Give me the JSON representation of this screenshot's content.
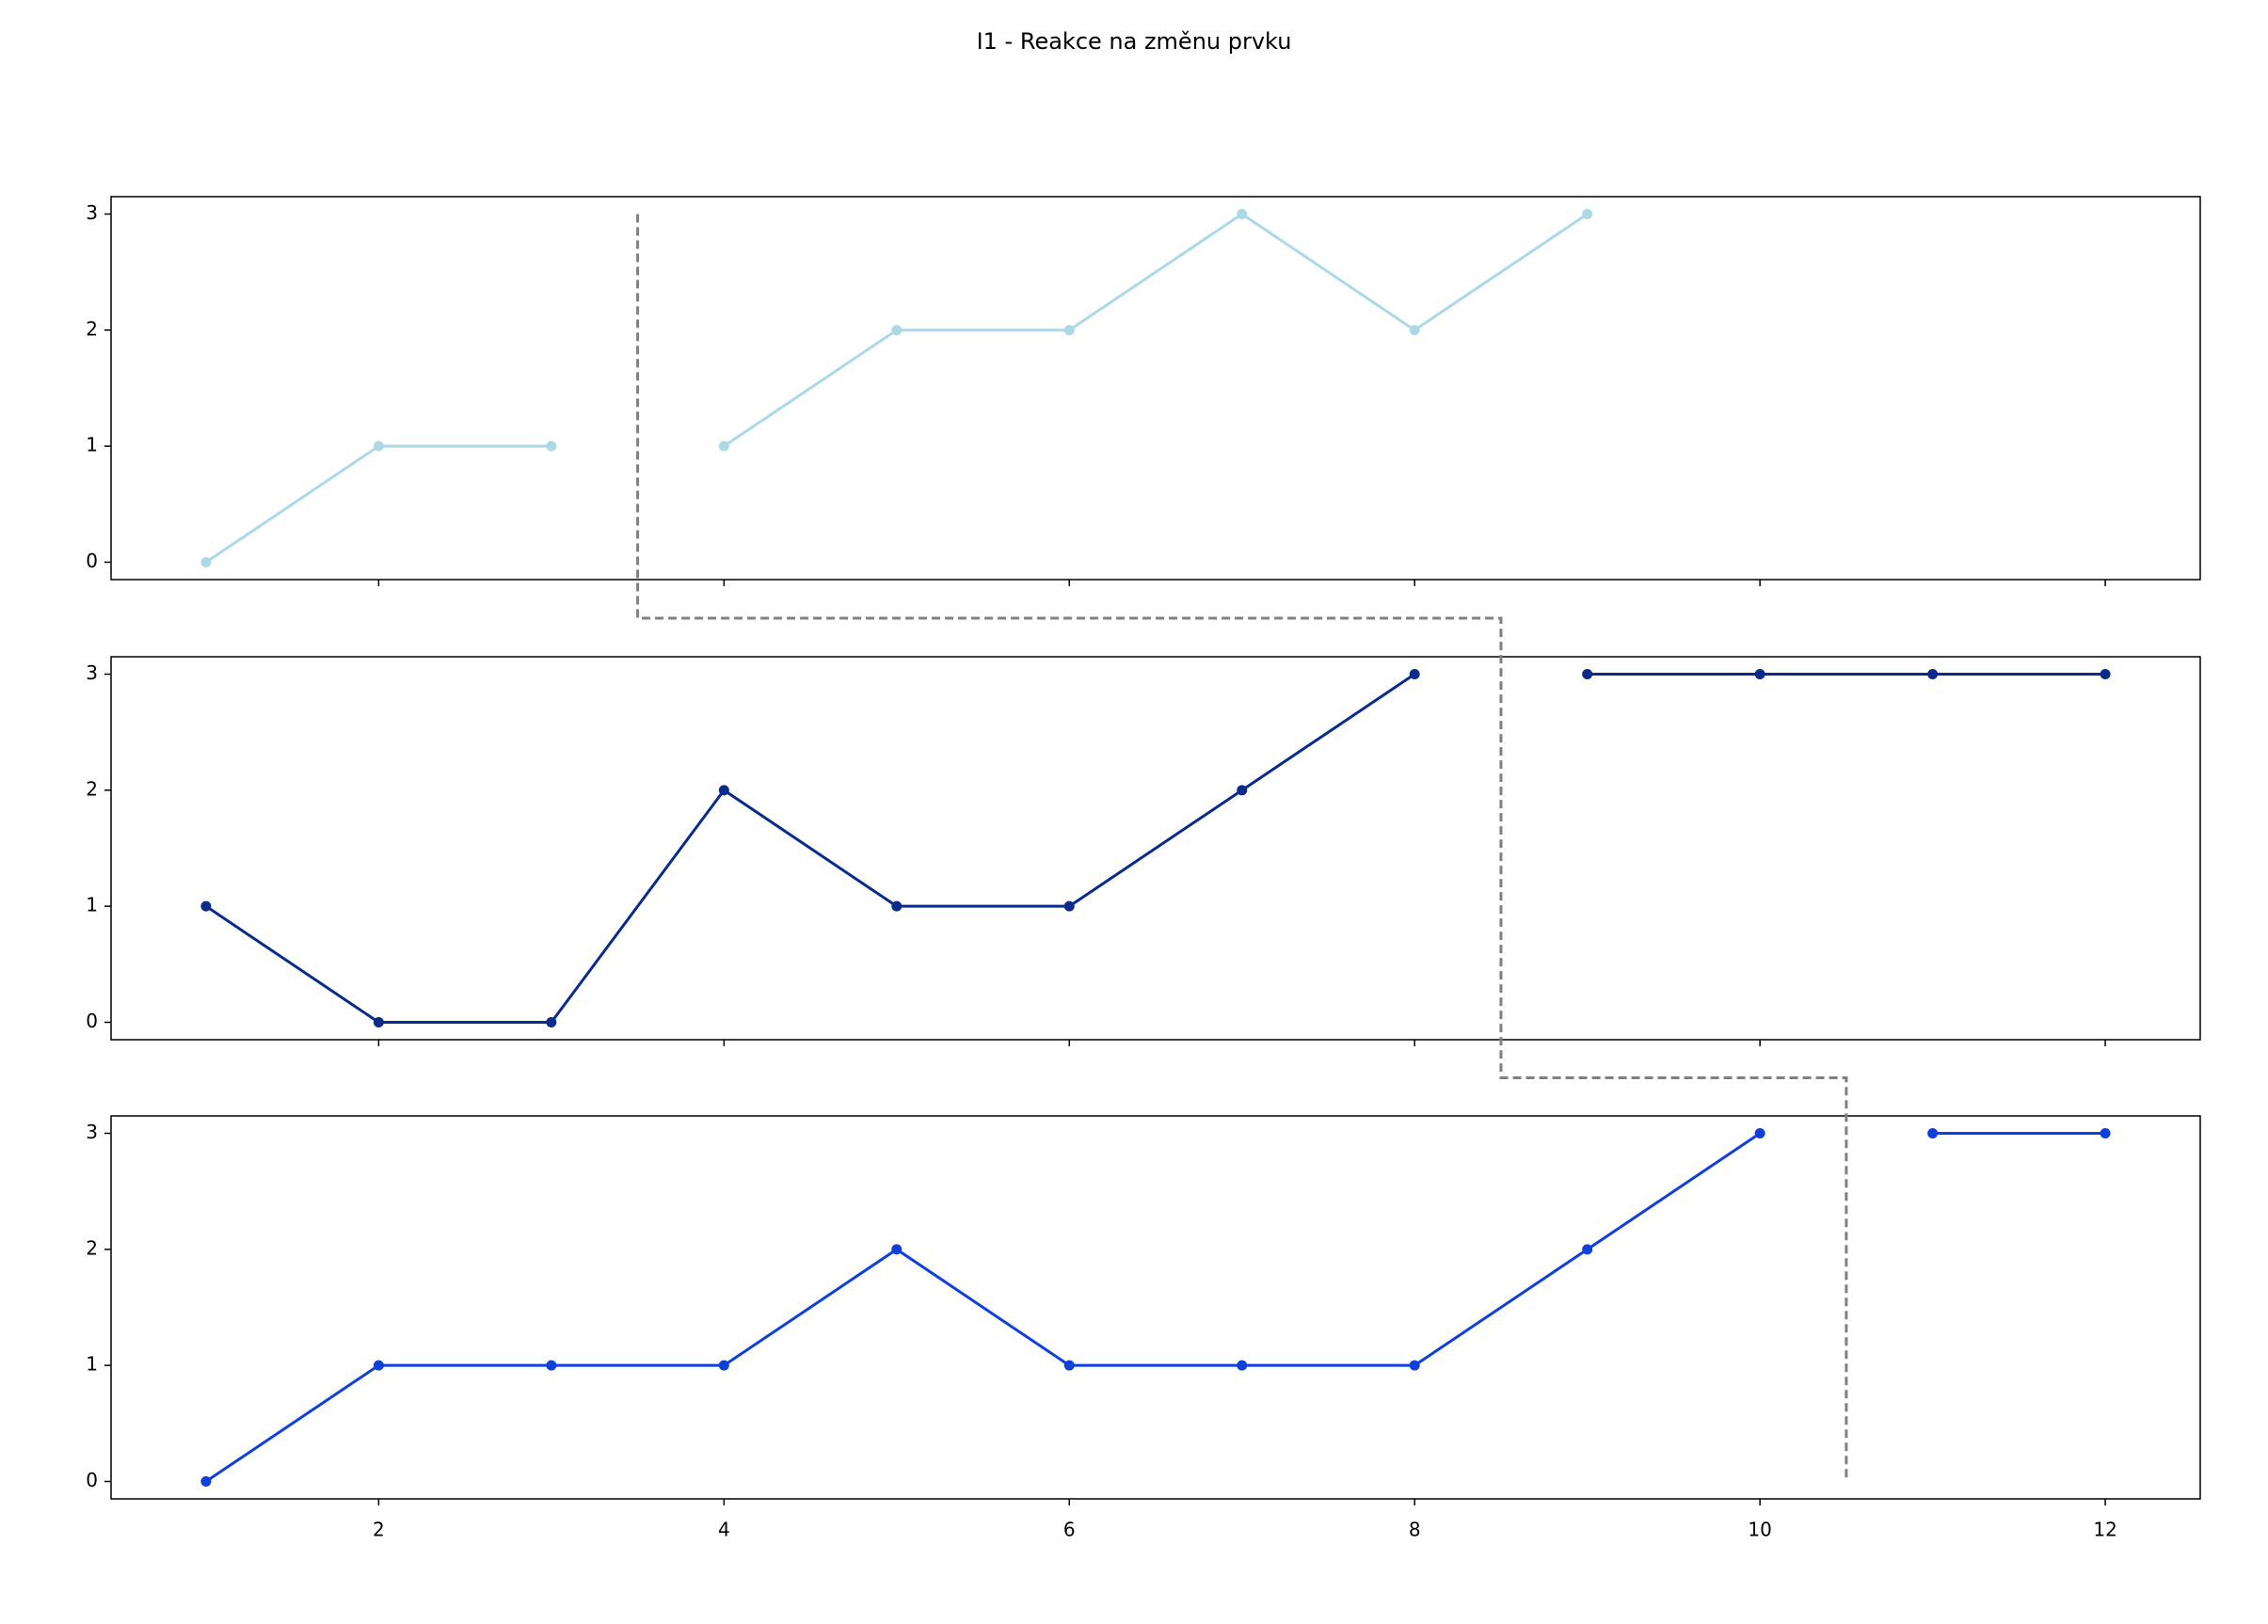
{
  "chart_data": {
    "type": "line",
    "title": "I1 - Reakce na změnu prvku",
    "xlim": [
      0.45,
      12.55
    ],
    "ylim": [
      -0.15,
      3.15
    ],
    "xticks": [
      2,
      4,
      6,
      8,
      10,
      12
    ],
    "yticks": [
      0,
      1,
      2,
      3
    ],
    "series": [
      {
        "color": "#add8e6",
        "x": [
          1,
          2,
          3,
          3.5,
          4,
          5,
          6,
          7,
          8,
          9
        ],
        "values": [
          0,
          1,
          1,
          null,
          1,
          2,
          2,
          3,
          2,
          3
        ]
      },
      {
        "color": "#0a2a8c",
        "x": [
          1,
          2,
          3,
          4,
          5,
          6,
          7,
          8,
          8.5,
          9,
          10,
          11,
          12
        ],
        "values": [
          1,
          0,
          0,
          2,
          1,
          1,
          2,
          3,
          null,
          3,
          3,
          3,
          3
        ]
      },
      {
        "color": "#0f40dc",
        "x": [
          1,
          2,
          3,
          4,
          5,
          6,
          7,
          8,
          9,
          10,
          10.5,
          11,
          12
        ],
        "values": [
          0,
          1,
          1,
          1,
          2,
          1,
          1,
          1,
          2,
          3,
          null,
          3,
          3
        ]
      }
    ]
  }
}
